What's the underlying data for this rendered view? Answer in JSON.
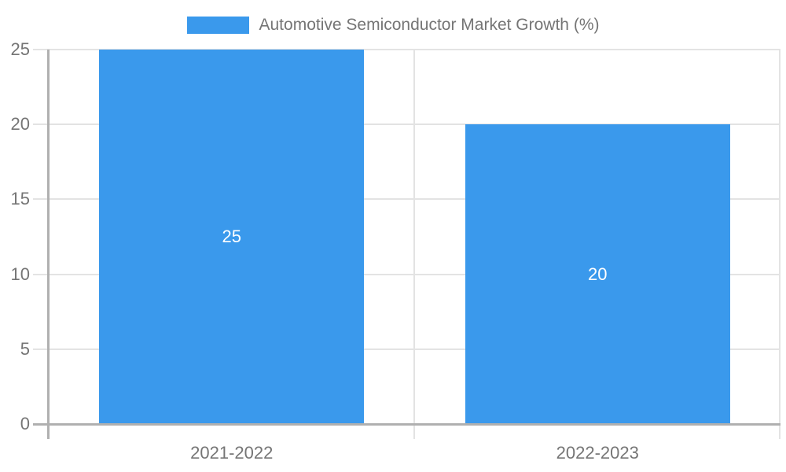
{
  "legend": {
    "label": "Automotive Semiconductor Market Growth (%)"
  },
  "colors": {
    "bar": "#3A99EC",
    "bar_label_text": "#FFFFFF",
    "axis_text": "#757575",
    "gridline": "#E3E3E3",
    "axis_line": "#B0B0B0",
    "background": "#FFFFFF"
  },
  "chart_data": {
    "type": "bar",
    "title": "Automotive Semiconductor Market Growth (%)",
    "legend_position": "top",
    "categories": [
      "2021-2022",
      "2022-2023"
    ],
    "series": [
      {
        "name": "Automotive Semiconductor Market Growth (%)",
        "values": [
          25,
          20
        ]
      }
    ],
    "data_labels": [
      "25",
      "20"
    ],
    "xlabel": "",
    "ylabel": "",
    "ylim": [
      0,
      25
    ],
    "yticks": [
      0,
      5,
      10,
      15,
      20,
      25
    ],
    "grid": true
  }
}
